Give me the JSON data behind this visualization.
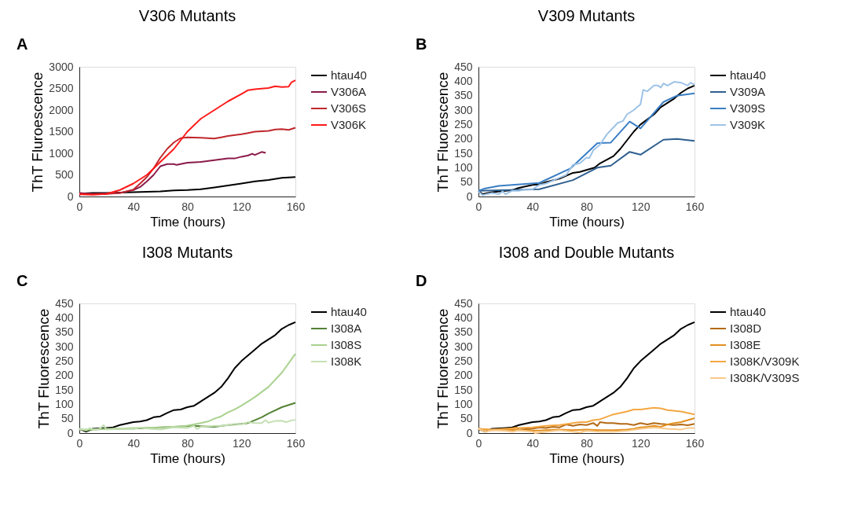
{
  "chart_data": [
    {
      "type": "line",
      "title": "V306 Mutants",
      "annotations": [
        "A"
      ],
      "xlabel": "Time (hours)",
      "ylabel": "ThT Fluroescence",
      "xlim": [
        0,
        160
      ],
      "xticks": [
        0,
        40,
        80,
        120,
        160
      ],
      "ylim": [
        0,
        3000
      ],
      "yticks": [
        0,
        500,
        1000,
        1500,
        2000,
        2500,
        3000
      ],
      "grid": false,
      "legend": "right",
      "marker": "none",
      "line_style": "solid",
      "series": [
        {
          "name": "htau40",
          "color": "#000000",
          "x": [
            0,
            10,
            20,
            40,
            60,
            70,
            80,
            90,
            100,
            120,
            130,
            140,
            150,
            160
          ],
          "values": [
            70,
            80,
            80,
            100,
            120,
            140,
            150,
            170,
            210,
            300,
            350,
            380,
            430,
            450
          ]
        },
        {
          "name": "V306A",
          "color": "#8b1a4a",
          "x": [
            0,
            10,
            20,
            30,
            40,
            45,
            50,
            55,
            60,
            65,
            70,
            72,
            80,
            90,
            100,
            110,
            115,
            120,
            125,
            128,
            130,
            135,
            138
          ],
          "values": [
            80,
            60,
            70,
            80,
            150,
            220,
            350,
            500,
            700,
            750,
            750,
            730,
            780,
            800,
            840,
            880,
            880,
            920,
            950,
            990,
            960,
            1030,
            1010
          ]
        },
        {
          "name": "V306S",
          "color": "#c0272d",
          "x": [
            0,
            10,
            20,
            30,
            40,
            45,
            50,
            55,
            60,
            65,
            70,
            75,
            80,
            90,
            100,
            105,
            110,
            120,
            125,
            130,
            140,
            145,
            150,
            155,
            160
          ],
          "values": [
            60,
            50,
            60,
            80,
            160,
            300,
            450,
            650,
            900,
            1100,
            1250,
            1350,
            1370,
            1360,
            1340,
            1370,
            1400,
            1440,
            1470,
            1500,
            1520,
            1550,
            1560,
            1540,
            1590
          ]
        },
        {
          "name": "V306K",
          "color": "#ff1a1a",
          "x": [
            0,
            10,
            20,
            30,
            40,
            50,
            60,
            70,
            80,
            90,
            100,
            110,
            120,
            125,
            130,
            140,
            145,
            150,
            155,
            157,
            160
          ],
          "values": [
            50,
            40,
            60,
            150,
            300,
            500,
            800,
            1100,
            1500,
            1800,
            2000,
            2200,
            2370,
            2460,
            2480,
            2510,
            2550,
            2530,
            2540,
            2640,
            2690
          ]
        }
      ]
    },
    {
      "type": "line",
      "title": "V309 Mutants",
      "annotations": [
        "B"
      ],
      "xlabel": "Time (hours)",
      "ylabel": "ThT Fluorescence",
      "xlim": [
        0,
        160
      ],
      "xticks": [
        0,
        40,
        80,
        120,
        160
      ],
      "ylim": [
        0,
        450
      ],
      "yticks": [
        0,
        50,
        100,
        150,
        200,
        250,
        300,
        350,
        400,
        450
      ],
      "grid": false,
      "legend": "right",
      "marker": "none",
      "line_style": "solid",
      "series": [
        {
          "name": "htau40",
          "color": "#000000",
          "x": [
            0,
            3,
            10,
            20,
            25,
            30,
            40,
            45,
            50,
            60,
            70,
            75,
            86,
            90,
            100,
            105,
            110,
            115,
            120,
            130,
            135,
            140,
            145,
            150,
            155,
            160
          ],
          "values": [
            20,
            8,
            15,
            20,
            22,
            30,
            40,
            42,
            50,
            62,
            82,
            85,
            100,
            115,
            140,
            165,
            195,
            225,
            250,
            285,
            310,
            325,
            340,
            360,
            375,
            385
          ]
        },
        {
          "name": "V309A",
          "color": "#2f5f8f",
          "x": [
            0,
            45,
            70,
            88,
            98,
            112,
            120,
            137,
            147,
            160
          ],
          "values": [
            20,
            25,
            57,
            100,
            107,
            155,
            145,
            197,
            200,
            193
          ]
        },
        {
          "name": "V309S",
          "color": "#3a7ec4",
          "x": [
            0,
            5,
            15,
            25,
            45,
            68,
            88,
            98,
            112,
            120,
            137,
            147,
            160
          ],
          "values": [
            20,
            28,
            37,
            40,
            47,
            97,
            185,
            187,
            260,
            236,
            328,
            350,
            358
          ]
        },
        {
          "name": "V309K",
          "color": "#9dc3e6",
          "x": [
            0,
            3,
            10,
            15,
            18,
            20,
            25,
            30,
            35,
            40,
            45,
            50,
            55,
            60,
            65,
            70,
            75,
            80,
            82,
            85,
            90,
            95,
            100,
            103,
            107,
            110,
            115,
            120,
            122,
            125,
            130,
            133,
            135,
            137,
            140,
            145,
            150,
            155,
            157,
            160
          ],
          "values": [
            18,
            5,
            12,
            8,
            18,
            8,
            20,
            20,
            25,
            25,
            40,
            45,
            55,
            65,
            75,
            110,
            115,
            135,
            133,
            160,
            180,
            215,
            240,
            255,
            262,
            285,
            300,
            320,
            370,
            365,
            385,
            385,
            378,
            392,
            385,
            398,
            395,
            385,
            395,
            388
          ]
        }
      ]
    },
    {
      "type": "line",
      "title": "I308 Mutants",
      "annotations": [
        "C"
      ],
      "xlabel": "Time (hours)",
      "ylabel": "ThT Fluorescence",
      "xlim": [
        0,
        160
      ],
      "xticks": [
        0,
        40,
        80,
        120,
        160
      ],
      "ylim": [
        0,
        450
      ],
      "yticks": [
        0,
        50,
        100,
        150,
        200,
        250,
        300,
        350,
        400,
        450
      ],
      "grid": false,
      "legend": "right",
      "marker": "none",
      "line_style": "solid",
      "series": [
        {
          "name": "htau40",
          "color": "#000000",
          "x": [
            0,
            5,
            10,
            20,
            25,
            30,
            40,
            45,
            50,
            55,
            60,
            65,
            70,
            75,
            80,
            85,
            90,
            100,
            105,
            110,
            115,
            120,
            130,
            135,
            140,
            145,
            150,
            155,
            160
          ],
          "values": [
            15,
            5,
            15,
            18,
            20,
            28,
            38,
            40,
            45,
            55,
            58,
            70,
            80,
            82,
            90,
            95,
            110,
            140,
            160,
            190,
            225,
            250,
            290,
            310,
            325,
            340,
            362,
            375,
            385
          ]
        },
        {
          "name": "I308A",
          "color": "#548235",
          "x": [
            0,
            5,
            10,
            20,
            40,
            60,
            70,
            85,
            100,
            110,
            120,
            125,
            135,
            140,
            150,
            160
          ],
          "values": [
            15,
            8,
            12,
            14,
            16,
            20,
            22,
            25,
            22,
            28,
            32,
            35,
            55,
            68,
            90,
            105
          ]
        },
        {
          "name": "I308S",
          "color": "#a9d18e",
          "x": [
            0,
            20,
            40,
            60,
            75,
            80,
            90,
            95,
            100,
            105,
            110,
            115,
            120,
            130,
            140,
            150,
            160
          ],
          "values": [
            12,
            14,
            18,
            20,
            23,
            26,
            35,
            40,
            50,
            58,
            72,
            82,
            95,
            125,
            160,
            210,
            275
          ]
        },
        {
          "name": "I308K",
          "color": "#c5e0b4",
          "x": [
            0,
            5,
            8,
            10,
            15,
            18,
            20,
            30,
            40,
            45,
            50,
            60,
            70,
            80,
            85,
            87,
            90,
            100,
            105,
            110,
            115,
            120,
            125,
            130,
            135,
            138,
            140,
            145,
            150,
            153,
            157,
            160
          ],
          "values": [
            15,
            10,
            18,
            10,
            15,
            28,
            12,
            15,
            14,
            20,
            16,
            12,
            20,
            18,
            25,
            14,
            22,
            25,
            25,
            28,
            32,
            30,
            38,
            35,
            35,
            45,
            36,
            42,
            43,
            38,
            44,
            46
          ]
        }
      ]
    },
    {
      "type": "line",
      "title": "I308 and Double Mutants",
      "annotations": [
        "D"
      ],
      "xlabel": "Time (hours)",
      "ylabel": "ThT Fluorescence",
      "xlim": [
        0,
        160
      ],
      "xticks": [
        0,
        40,
        80,
        120,
        160
      ],
      "ylim": [
        0,
        450
      ],
      "yticks": [
        0,
        50,
        100,
        150,
        200,
        250,
        300,
        350,
        400,
        450
      ],
      "grid": false,
      "legend": "right",
      "marker": "none",
      "line_style": "solid",
      "series": [
        {
          "name": "htau40",
          "color": "#000000",
          "x": [
            0,
            5,
            10,
            20,
            25,
            30,
            40,
            45,
            50,
            55,
            60,
            65,
            70,
            75,
            80,
            85,
            90,
            100,
            105,
            110,
            115,
            120,
            130,
            135,
            140,
            145,
            150,
            155,
            160
          ],
          "values": [
            15,
            5,
            15,
            18,
            20,
            28,
            38,
            40,
            45,
            55,
            58,
            70,
            80,
            82,
            90,
            95,
            110,
            140,
            160,
            190,
            225,
            250,
            290,
            310,
            325,
            340,
            362,
            375,
            385
          ]
        },
        {
          "name": "I308D",
          "color": "#b46a16",
          "x": [
            0,
            5,
            10,
            20,
            28,
            30,
            40,
            45,
            50,
            55,
            60,
            65,
            70,
            75,
            80,
            85,
            88,
            90,
            95,
            100,
            105,
            110,
            115,
            120,
            125,
            130,
            135,
            140,
            145,
            150,
            155,
            160
          ],
          "values": [
            15,
            5,
            12,
            10,
            20,
            12,
            15,
            20,
            18,
            22,
            20,
            30,
            25,
            30,
            28,
            35,
            25,
            38,
            35,
            35,
            32,
            32,
            28,
            35,
            30,
            35,
            32,
            30,
            28,
            30,
            27,
            32
          ]
        },
        {
          "name": "I308E",
          "color": "#e28f1f",
          "x": [
            0,
            10,
            20,
            30,
            40,
            50,
            60,
            70,
            80,
            90,
            100,
            110,
            115,
            120,
            125,
            130,
            135,
            140,
            145,
            150,
            155,
            160
          ],
          "values": [
            15,
            10,
            12,
            10,
            8,
            10,
            12,
            10,
            12,
            10,
            10,
            12,
            15,
            20,
            22,
            25,
            22,
            30,
            35,
            38,
            45,
            52
          ]
        },
        {
          "name": "I308K/V309K",
          "color": "#f4a742",
          "x": [
            0,
            10,
            20,
            30,
            40,
            50,
            60,
            70,
            75,
            80,
            85,
            90,
            100,
            110,
            115,
            120,
            130,
            135,
            140,
            150,
            160
          ],
          "values": [
            15,
            12,
            15,
            18,
            20,
            25,
            28,
            35,
            38,
            38,
            45,
            48,
            65,
            75,
            82,
            82,
            88,
            86,
            80,
            75,
            65
          ]
        },
        {
          "name": "I308K/V309S",
          "color": "#f8c98a",
          "x": [
            0,
            5,
            10,
            20,
            25,
            30,
            40,
            42,
            50,
            60,
            70,
            75,
            80,
            90,
            100,
            110,
            120,
            130,
            140,
            150,
            155,
            160
          ],
          "values": [
            15,
            5,
            10,
            8,
            5,
            10,
            5,
            0,
            5,
            10,
            5,
            2,
            8,
            5,
            5,
            8,
            15,
            20,
            15,
            12,
            18,
            18
          ]
        }
      ]
    }
  ]
}
